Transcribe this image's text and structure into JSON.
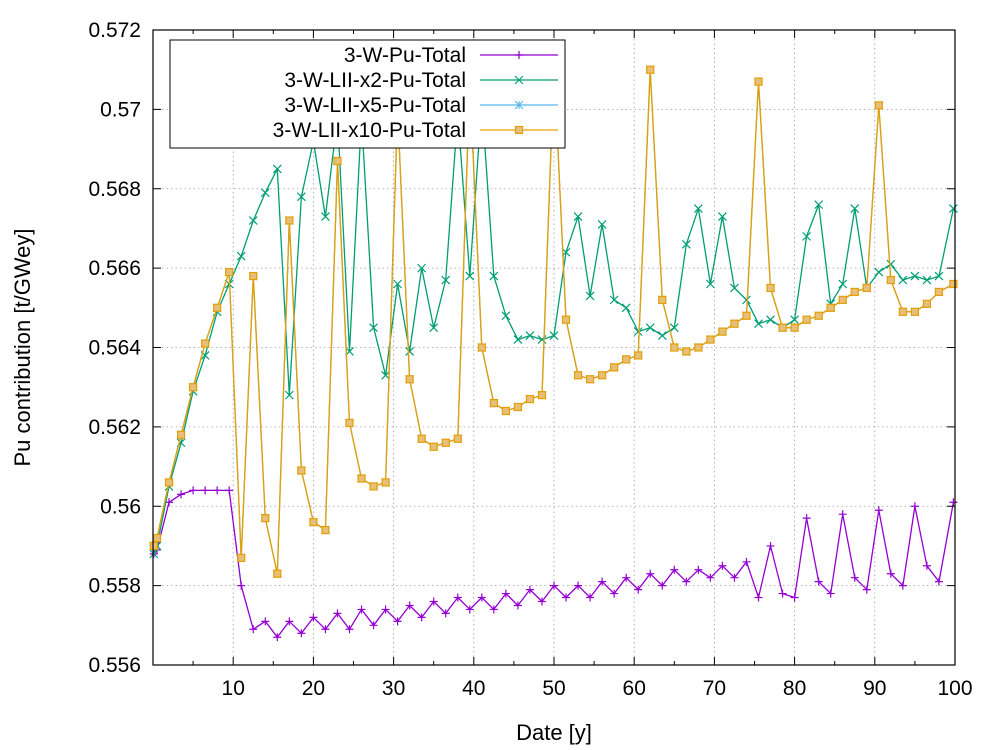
{
  "chart_data": {
    "type": "line",
    "title": "",
    "xlabel": "Date [y]",
    "ylabel": "Pu contribution [t/GWey]",
    "xlim": [
      0,
      100
    ],
    "ylim": [
      0.556,
      0.572
    ],
    "x_ticks": [
      "10",
      "20",
      "30",
      "40",
      "50",
      "60",
      "70",
      "80",
      "90",
      "100"
    ],
    "y_ticks": [
      "0.556",
      "0.558",
      "0.56",
      "0.562",
      "0.564",
      "0.566",
      "0.568",
      "0.57",
      "0.572"
    ],
    "grid": true,
    "legend_position": "top-left",
    "series": [
      {
        "name": "3-W-Pu-Total",
        "color": "#9400d3",
        "marker": "plus",
        "x": [
          0.1,
          0.5,
          2,
          3.5,
          5,
          6.5,
          8,
          9.5,
          11,
          12.5,
          14,
          15.5,
          17,
          18.5,
          20,
          21.5,
          23,
          24.5,
          26,
          27.5,
          29,
          30.5,
          32,
          33.5,
          35,
          36.5,
          38,
          39.5,
          41,
          42.5,
          44,
          45.5,
          47,
          48.5,
          50,
          51.5,
          53,
          54.5,
          56,
          57.5,
          59,
          60.5,
          62,
          63.5,
          65,
          66.5,
          68,
          69.5,
          71,
          72.5,
          74,
          75.5,
          77,
          78.5,
          80,
          81.5,
          83,
          84.5,
          86,
          87.5,
          89,
          90.5,
          92,
          93.5,
          95,
          96.5,
          98,
          99.8
        ],
        "y": [
          0.5588,
          0.5589,
          0.5601,
          0.5603,
          0.5604,
          0.5604,
          0.5604,
          0.5604,
          0.558,
          0.5569,
          0.5571,
          0.5567,
          0.5571,
          0.5568,
          0.5572,
          0.5569,
          0.5573,
          0.5569,
          0.5574,
          0.557,
          0.5574,
          0.5571,
          0.5575,
          0.5572,
          0.5576,
          0.5573,
          0.5577,
          0.5574,
          0.5577,
          0.5574,
          0.5578,
          0.5575,
          0.5579,
          0.5576,
          0.558,
          0.5577,
          0.558,
          0.5577,
          0.5581,
          0.5578,
          0.5582,
          0.5579,
          0.5583,
          0.558,
          0.5584,
          0.5581,
          0.5584,
          0.5582,
          0.5585,
          0.5582,
          0.5586,
          0.5577,
          0.559,
          0.5578,
          0.5577,
          0.5597,
          0.5581,
          0.5578,
          0.5598,
          0.5582,
          0.5579,
          0.5599,
          0.5583,
          0.558,
          0.56,
          0.5585,
          0.5581,
          0.5601
        ]
      },
      {
        "name": "3-W-LII-x2-Pu-Total",
        "color": "#009e73",
        "marker": "cross",
        "x": [
          0.1,
          0.5,
          2,
          3.5,
          5,
          6.5,
          8,
          9.5,
          11,
          12.5,
          14,
          15.5,
          17,
          18.5,
          20,
          21.5,
          23,
          24.5,
          26,
          27.5,
          29,
          30.5,
          32,
          33.5,
          35,
          36.5,
          38,
          39.5,
          41,
          42.5,
          44,
          45.5,
          47,
          48.5,
          50,
          51.5,
          53,
          54.5,
          56,
          57.5,
          59,
          60.5,
          62,
          63.5,
          65,
          66.5,
          68,
          69.5,
          71,
          72.5,
          74,
          75.5,
          77,
          78.5,
          80,
          81.5,
          83,
          84.5,
          86,
          87.5,
          89,
          90.5,
          92,
          93.5,
          95,
          96.5,
          98,
          99.8
        ],
        "y": [
          0.5588,
          0.559,
          0.5605,
          0.5616,
          0.5629,
          0.5638,
          0.5649,
          0.5656,
          0.5663,
          0.5672,
          0.5679,
          0.5685,
          0.5628,
          0.5678,
          0.5692,
          0.5673,
          0.5698,
          0.5639,
          0.5698,
          0.5645,
          0.5633,
          0.5656,
          0.5639,
          0.566,
          0.5645,
          0.5657,
          0.5699,
          0.5658,
          0.5702,
          0.5658,
          0.5648,
          0.5642,
          0.5643,
          0.5642,
          0.5643,
          0.5664,
          0.5673,
          0.5653,
          0.5671,
          0.5652,
          0.565,
          0.5644,
          0.5645,
          0.5643,
          0.5645,
          0.5666,
          0.5675,
          0.5656,
          0.5673,
          0.5655,
          0.5652,
          0.5646,
          0.5647,
          0.5645,
          0.5647,
          0.5668,
          0.5676,
          0.5651,
          0.5656,
          0.5675,
          0.5655,
          0.5659,
          0.5661,
          0.5657,
          0.5658,
          0.5657,
          0.5658,
          0.5675
        ]
      },
      {
        "name": "3-W-LII-x5-Pu-Total",
        "color": "#56b4e9",
        "marker": "star",
        "x": [
          0.1,
          0.5,
          2,
          3.5,
          5,
          6.5,
          8,
          9.5,
          11,
          12.5,
          14,
          15.5,
          17,
          18.5,
          20,
          21.5,
          23,
          24.5,
          26,
          27.5,
          29,
          30.5,
          32,
          33.5,
          35,
          36.5,
          38,
          39.5,
          41,
          42.5,
          44,
          45.5,
          47,
          48.5,
          50,
          51.5,
          53,
          54.5,
          56,
          57.5,
          59,
          60.5,
          62,
          63.5,
          65,
          66.5,
          68,
          69.5,
          71,
          72.5,
          74,
          75.5,
          77,
          78.5,
          80,
          81.5,
          83,
          84.5,
          86,
          87.5,
          89,
          90.5,
          92,
          93.5,
          95,
          96.5,
          98,
          99.8
        ],
        "y": [
          0.559,
          0.5592,
          0.5606,
          0.5618,
          0.563,
          0.5641,
          0.565,
          0.5659,
          0.5587,
          0.5658,
          0.5597,
          0.5583,
          0.5672,
          0.5609,
          0.5596,
          0.5594,
          0.5687,
          0.5621,
          0.5607,
          0.5605,
          0.5606,
          0.57,
          0.5632,
          0.5617,
          0.5615,
          0.5616,
          0.5617,
          0.5707,
          0.564,
          0.5626,
          0.5624,
          0.5625,
          0.5627,
          0.5628,
          0.5711,
          0.5647,
          0.5633,
          0.5632,
          0.5633,
          0.5635,
          0.5637,
          0.5638,
          0.571,
          0.5652,
          0.564,
          0.5639,
          0.564,
          0.5642,
          0.5644,
          0.5646,
          0.5648,
          0.5707,
          0.5655,
          0.5645,
          0.5645,
          0.5647,
          0.5648,
          0.565,
          0.5652,
          0.5654,
          0.5655,
          0.5701,
          0.5657,
          0.5649,
          0.5649,
          0.5651,
          0.5654,
          0.5656
        ]
      },
      {
        "name": "3-W-LII-x10-Pu-Total",
        "color": "#e69f00",
        "marker": "square",
        "x": [
          0.1,
          0.5,
          2,
          3.5,
          5,
          6.5,
          8,
          9.5,
          11,
          12.5,
          14,
          15.5,
          17,
          18.5,
          20,
          21.5,
          23,
          24.5,
          26,
          27.5,
          29,
          30.5,
          32,
          33.5,
          35,
          36.5,
          38,
          39.5,
          41,
          42.5,
          44,
          45.5,
          47,
          48.5,
          50,
          51.5,
          53,
          54.5,
          56,
          57.5,
          59,
          60.5,
          62,
          63.5,
          65,
          66.5,
          68,
          69.5,
          71,
          72.5,
          74,
          75.5,
          77,
          78.5,
          80,
          81.5,
          83,
          84.5,
          86,
          87.5,
          89,
          90.5,
          92,
          93.5,
          95,
          96.5,
          98,
          99.8
        ],
        "y": [
          0.559,
          0.5592,
          0.5606,
          0.5618,
          0.563,
          0.5641,
          0.565,
          0.5659,
          0.5587,
          0.5658,
          0.5597,
          0.5583,
          0.5672,
          0.5609,
          0.5596,
          0.5594,
          0.5687,
          0.5621,
          0.5607,
          0.5605,
          0.5606,
          0.57,
          0.5632,
          0.5617,
          0.5615,
          0.5616,
          0.5617,
          0.5707,
          0.564,
          0.5626,
          0.5624,
          0.5625,
          0.5627,
          0.5628,
          0.5711,
          0.5647,
          0.5633,
          0.5632,
          0.5633,
          0.5635,
          0.5637,
          0.5638,
          0.571,
          0.5652,
          0.564,
          0.5639,
          0.564,
          0.5642,
          0.5644,
          0.5646,
          0.5648,
          0.5707,
          0.5655,
          0.5645,
          0.5645,
          0.5647,
          0.5648,
          0.565,
          0.5652,
          0.5654,
          0.5655,
          0.5701,
          0.5657,
          0.5649,
          0.5649,
          0.5651,
          0.5654,
          0.5656
        ]
      }
    ]
  }
}
